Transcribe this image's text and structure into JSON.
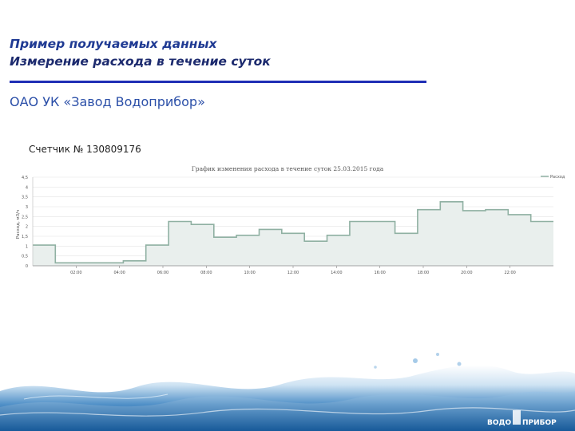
{
  "slide": {
    "title_line1": "Пример получаемых данных",
    "title_line2": "Измерение расхода в течение суток",
    "company": "ОАО УК «Завод Водоприбор»",
    "meter": "Счетчик № 130809176"
  },
  "chart_data": {
    "type": "line",
    "step": true,
    "title": "График изменения расхода в течение суток 25.03.2015 года",
    "ylabel": "Расход, м3/ч",
    "ylim": [
      0,
      4.5
    ],
    "yticks": [
      0,
      0.5,
      1,
      1.5,
      2,
      2.5,
      3,
      3.5,
      4,
      4.5
    ],
    "ytick_labels": [
      "0",
      "0,5",
      "1",
      "1,5",
      "2",
      "2,5",
      "3",
      "3,5",
      "4",
      "4,5"
    ],
    "xlim": [
      0,
      24
    ],
    "xticks": [
      2,
      4,
      6,
      8,
      10,
      12,
      14,
      16,
      18,
      20,
      22
    ],
    "xtick_labels": [
      "02:00",
      "04:00",
      "06:00",
      "08:00",
      "10:00",
      "12:00",
      "14:00",
      "16:00",
      "18:00",
      "20:00",
      "22:00"
    ],
    "grid": true,
    "legend_position": "top-right",
    "series": [
      {
        "name": "Расход",
        "color": "#8fb0a2",
        "fill": "#e9efed",
        "values": [
          1.05,
          0.15,
          0.15,
          0.15,
          0.25,
          1.05,
          2.25,
          2.1,
          1.45,
          1.55,
          1.85,
          1.65,
          1.25,
          1.55,
          2.25,
          2.25,
          1.65,
          2.85,
          3.25,
          2.8,
          2.85,
          2.6,
          2.25
        ]
      }
    ]
  },
  "colors": {
    "title": "#1f3a93",
    "rule": "#1f2fb5",
    "company": "#2b4fa8",
    "series_line": "#8fb0a2",
    "series_fill": "#e9efed"
  },
  "decor": {
    "background_image": "water-splash",
    "logo_text": "ВОДОПРИБОР"
  }
}
